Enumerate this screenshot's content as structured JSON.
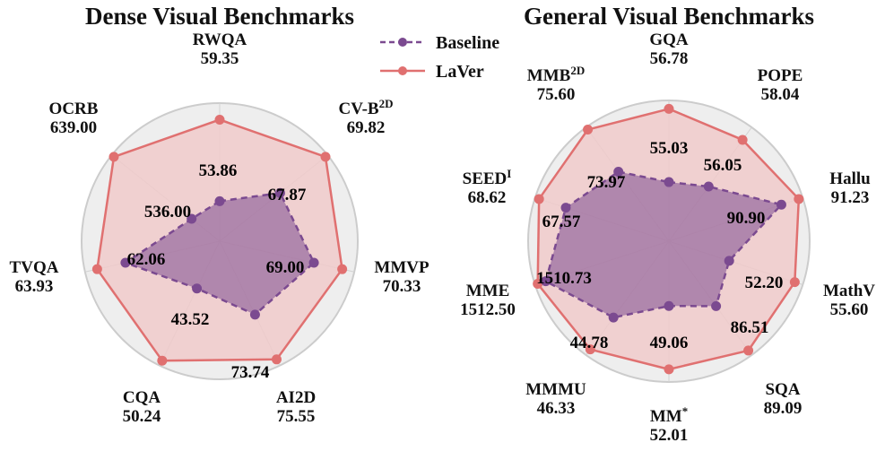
{
  "colors": {
    "baseline": "#7b4a90",
    "laver": "#e07070",
    "laver_fill": "#f0caca",
    "background": "#eeeeee",
    "grid": "#d2d2d2",
    "border": "#cccccc"
  },
  "legend": {
    "baseline_label": "Baseline",
    "laver_label": "LaVer",
    "baseline_icon": "dashed-line-circle-marker",
    "laver_icon": "solid-line-circle-marker"
  },
  "chart_data": [
    {
      "type": "radar",
      "title": "Dense Visual Benchmarks",
      "normalization": "per-axis",
      "axes": [
        {
          "name": "RWQA",
          "sup": "",
          "laver_label": "59.35",
          "baseline_label": "53.86",
          "laver_r": 0.88,
          "baseline_r": 0.29
        },
        {
          "name": "CV-B",
          "sup": "2D",
          "laver_label": "69.82",
          "baseline_label": "67.87",
          "laver_r": 0.98,
          "baseline_r": 0.56
        },
        {
          "name": "MMVP",
          "sup": "",
          "laver_label": "70.33",
          "baseline_label": "69.00",
          "laver_r": 0.91,
          "baseline_r": 0.7
        },
        {
          "name": "AI2D",
          "sup": "",
          "laver_label": "75.55",
          "baseline_label": "73.74",
          "laver_r": 0.95,
          "baseline_r": 0.59
        },
        {
          "name": "CQA",
          "sup": "",
          "laver_label": "50.24",
          "baseline_label": "43.52",
          "laver_r": 0.96,
          "baseline_r": 0.38
        },
        {
          "name": "TVQA",
          "sup": "",
          "laver_label": "63.93",
          "baseline_label": "62.06",
          "laver_r": 0.91,
          "baseline_r": 0.7
        },
        {
          "name": "OCRB",
          "sup": "",
          "laver_label": "639.00",
          "baseline_label": "536.00",
          "laver_r": 0.98,
          "baseline_r": 0.26
        }
      ],
      "series": [
        {
          "name": "Baseline",
          "values": [
            53.86,
            67.87,
            69.0,
            73.74,
            43.52,
            62.06,
            536.0
          ]
        },
        {
          "name": "LaVer",
          "values": [
            59.35,
            69.82,
            70.33,
            75.55,
            50.24,
            63.93,
            639.0
          ]
        }
      ]
    },
    {
      "type": "radar",
      "title": "General Visual Benchmarks",
      "normalization": "per-axis",
      "axes": [
        {
          "name": "GQA",
          "sup": "",
          "laver_label": "56.78",
          "baseline_label": "55.03",
          "laver_r": 0.94,
          "baseline_r": 0.42
        },
        {
          "name": "POPE",
          "sup": "",
          "laver_label": "58.04",
          "baseline_label": "56.05",
          "laver_r": 0.89,
          "baseline_r": 0.48
        },
        {
          "name": "Hallu",
          "sup": "",
          "laver_label": "91.23",
          "baseline_label": "90.90",
          "laver_r": 0.97,
          "baseline_r": 0.84
        },
        {
          "name": "MathV",
          "sup": "",
          "laver_label": "55.60",
          "baseline_label": "52.20",
          "laver_r": 0.94,
          "baseline_r": 0.45
        },
        {
          "name": "SQA",
          "sup": "",
          "laver_label": "89.09",
          "baseline_label": "86.51",
          "laver_r": 0.96,
          "baseline_r": 0.57
        },
        {
          "name": "MM",
          "sup": "*",
          "laver_label": "52.01",
          "baseline_label": "49.06",
          "laver_r": 0.91,
          "baseline_r": 0.46
        },
        {
          "name": "MMMU",
          "sup": "",
          "laver_label": "46.33",
          "baseline_label": "44.78",
          "laver_r": 0.95,
          "baseline_r": 0.67
        },
        {
          "name": "MME",
          "sup": "",
          "laver_label": "1512.50",
          "baseline_label": "1510.73",
          "laver_r": 0.98,
          "baseline_r": 0.92
        },
        {
          "name": "SEED",
          "sup": "I",
          "laver_label": "68.62",
          "baseline_label": "67.57",
          "laver_r": 0.97,
          "baseline_r": 0.77
        },
        {
          "name": "MMB",
          "sup": "2D",
          "laver_label": "75.60",
          "baseline_label": "73.97",
          "laver_r": 0.98,
          "baseline_r": 0.61
        }
      ],
      "series": [
        {
          "name": "Baseline",
          "values": [
            55.03,
            56.05,
            90.9,
            52.2,
            86.51,
            49.06,
            44.78,
            1510.73,
            67.57,
            73.97
          ]
        },
        {
          "name": "LaVer",
          "values": [
            56.78,
            58.04,
            91.23,
            55.6,
            89.09,
            52.01,
            46.33,
            1512.5,
            68.62,
            75.6
          ]
        }
      ]
    }
  ]
}
